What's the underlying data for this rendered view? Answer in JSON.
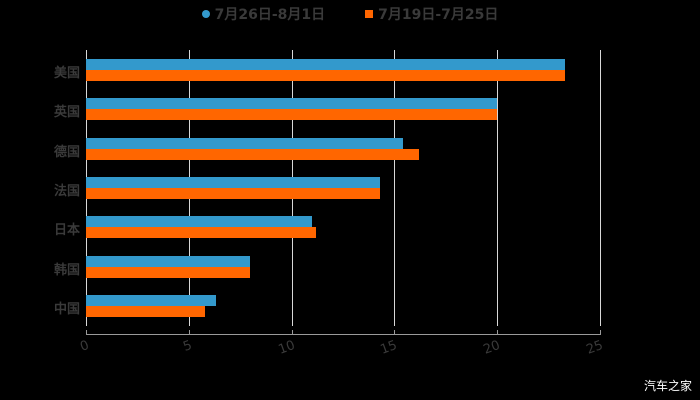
{
  "chart_data": {
    "type": "bar",
    "orientation": "horizontal",
    "categories": [
      "美国",
      "英国",
      "德国",
      "法国",
      "日本",
      "韩国",
      "中国"
    ],
    "series": [
      {
        "name": "7月26日-8月1日",
        "color": "#3399cc",
        "marker": "circle",
        "values": [
          23.3,
          20.0,
          15.4,
          14.3,
          11.0,
          8.0,
          6.3
        ]
      },
      {
        "name": "7月19日-7月25日",
        "color": "#ff6600",
        "marker": "square",
        "values": [
          23.3,
          20.0,
          16.2,
          14.3,
          11.2,
          8.0,
          5.8
        ]
      }
    ],
    "title": "",
    "xlabel": "",
    "ylabel": "",
    "xlim": [
      0,
      25
    ],
    "xticks": [
      "0",
      "5",
      "10",
      "15",
      "20",
      "25"
    ],
    "grid": true,
    "legend_position": "top"
  },
  "watermark": "汽车之家"
}
